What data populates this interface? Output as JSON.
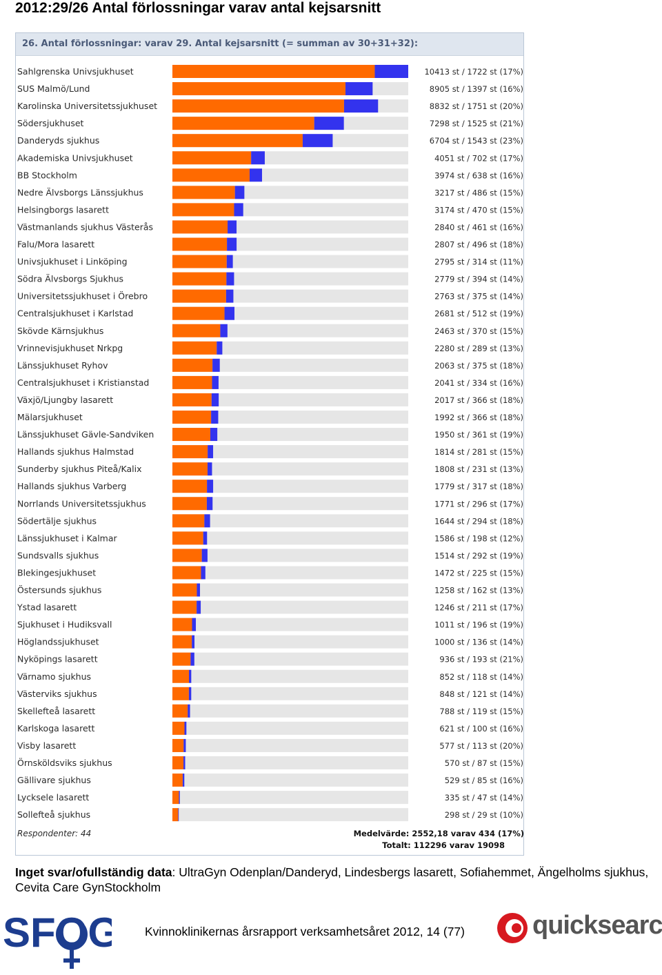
{
  "page_title": "2012:29/26 Antal förlossningar varav antal kejsarsnitt",
  "panel_header": "26. Antal förlossningar: varav 29. Antal kejsarsnitt (= summan av 30+31+32):",
  "colors": {
    "births": "#ff6a00",
    "cesarean": "#3333ee",
    "track": "#e6e6e6"
  },
  "chart_data": {
    "type": "bar",
    "orientation": "horizontal",
    "stacked": true,
    "xlim": [
      0,
      12135
    ],
    "categories": [
      "Sahlgrenska Univsjukhuset",
      "SUS Malmö/Lund",
      "Karolinska Universitetssjukhuset",
      "Södersjukhuset",
      "Danderyds sjukhus",
      "Akademiska Univsjukhuset",
      "BB Stockholm",
      "Nedre Älvsborgs Länssjukhus",
      "Helsingborgs lasarett",
      "Västmanlands sjukhus Västerås",
      "Falu/Mora lasarett",
      "Univsjukhuset i Linköping",
      "Södra Älvsborgs Sjukhus",
      "Universitetssjukhuset i Örebro",
      "Centralsjukhuset i Karlstad",
      "Skövde Kärnsjukhus",
      "Vrinnevisjukhuset Nrkpg",
      "Länssjukhuset Ryhov",
      "Centralsjukhuset i Kristianstad",
      "Växjö/Ljungby lasarett",
      "Mälarsjukhuset",
      "Länssjukhuset Gävle-Sandviken",
      "Hallands sjukhus Halmstad",
      "Sunderby sjukhus Piteå/Kalix",
      "Hallands sjukhus Varberg",
      "Norrlands Universitetssjukhus",
      "Södertälje sjukhus",
      "Länssjukhuset i Kalmar",
      "Sundsvalls sjukhus",
      "Blekingesjukhuset",
      "Östersunds sjukhus",
      "Ystad lasarett",
      "Sjukhuset i Hudiksvall",
      "Höglandssjukhuset",
      "Nyköpings lasarett",
      "Värnamo sjukhus",
      "Västerviks sjukhus",
      "Skellefteå lasarett",
      "Karlskoga lasarett",
      "Visby lasarett",
      "Örnsköldsviks sjukhus",
      "Gällivare sjukhus",
      "Lycksele lasarett",
      "Sollefteå sjukhus"
    ],
    "series": [],
    "births": [
      10413,
      8905,
      8832,
      7298,
      6704,
      4051,
      3974,
      3217,
      3174,
      2840,
      2807,
      2795,
      2779,
      2763,
      2681,
      2463,
      2280,
      2063,
      2041,
      2017,
      1992,
      1950,
      1814,
      1808,
      1779,
      1771,
      1644,
      1586,
      1514,
      1472,
      1258,
      1246,
      1011,
      1000,
      936,
      852,
      848,
      788,
      621,
      577,
      570,
      529,
      335,
      298
    ],
    "cesareans": [
      1722,
      1397,
      1751,
      1525,
      1543,
      702,
      638,
      486,
      470,
      461,
      496,
      314,
      394,
      375,
      512,
      370,
      289,
      375,
      334,
      366,
      366,
      361,
      281,
      231,
      317,
      296,
      294,
      198,
      292,
      225,
      162,
      211,
      196,
      136,
      193,
      118,
      121,
      119,
      100,
      113,
      87,
      85,
      47,
      29
    ],
    "value_labels": [
      "10413 st / 1722 st (17%)",
      "8905 st / 1397 st (16%)",
      "8832 st / 1751 st (20%)",
      "7298 st / 1525 st (21%)",
      "6704 st / 1543 st (23%)",
      "4051 st / 702 st (17%)",
      "3974 st / 638 st (16%)",
      "3217 st / 486 st (15%)",
      "3174 st / 470 st (15%)",
      "2840 st / 461 st (16%)",
      "2807 st / 496 st (18%)",
      "2795 st / 314 st (11%)",
      "2779 st / 394 st (14%)",
      "2763 st / 375 st (14%)",
      "2681 st / 512 st (19%)",
      "2463 st / 370 st (15%)",
      "2280 st / 289 st (13%)",
      "2063 st / 375 st (18%)",
      "2041 st / 334 st (16%)",
      "2017 st / 366 st (18%)",
      "1992 st / 366 st (18%)",
      "1950 st / 361 st (19%)",
      "1814 st / 281 st (15%)",
      "1808 st / 231 st (13%)",
      "1779 st / 317 st (18%)",
      "1771 st / 296 st (17%)",
      "1644 st / 294 st (18%)",
      "1586 st / 198 st (12%)",
      "1514 st / 292 st (19%)",
      "1472 st / 225 st (15%)",
      "1258 st / 162 st (13%)",
      "1246 st / 211 st (17%)",
      "1011 st / 196 st (19%)",
      "1000 st / 136 st (14%)",
      "936 st / 193 st (21%)",
      "852 st / 118 st (14%)",
      "848 st / 121 st (14%)",
      "788 st / 119 st (15%)",
      "621 st / 100 st (16%)",
      "577 st / 113 st (20%)",
      "570 st / 87 st (15%)",
      "529 st / 85 st (16%)",
      "335 st / 47 st (14%)",
      "298 st / 29 st (10%)"
    ],
    "footer_left": "Respondenter: 44",
    "footer_right_1": "Medelvärde: 2552,18 varav 434 (17%)",
    "footer_right_2": "Totalt: 112296 varav 19098"
  },
  "note": {
    "bold": "Inget svar/ofullständig data",
    "text": ": UltraGyn Odenplan/Danderyd, Lindesbergs lasarett, Sofiahemmet, Ängelholms sjukhus, Cevita Care GynStockholm"
  },
  "report_line": "Kvinnokliniker­nas årsrapport verksamhetsåret 2012, 14 (77)",
  "logos": {
    "left": "SFOG",
    "right": "quicksearch"
  }
}
